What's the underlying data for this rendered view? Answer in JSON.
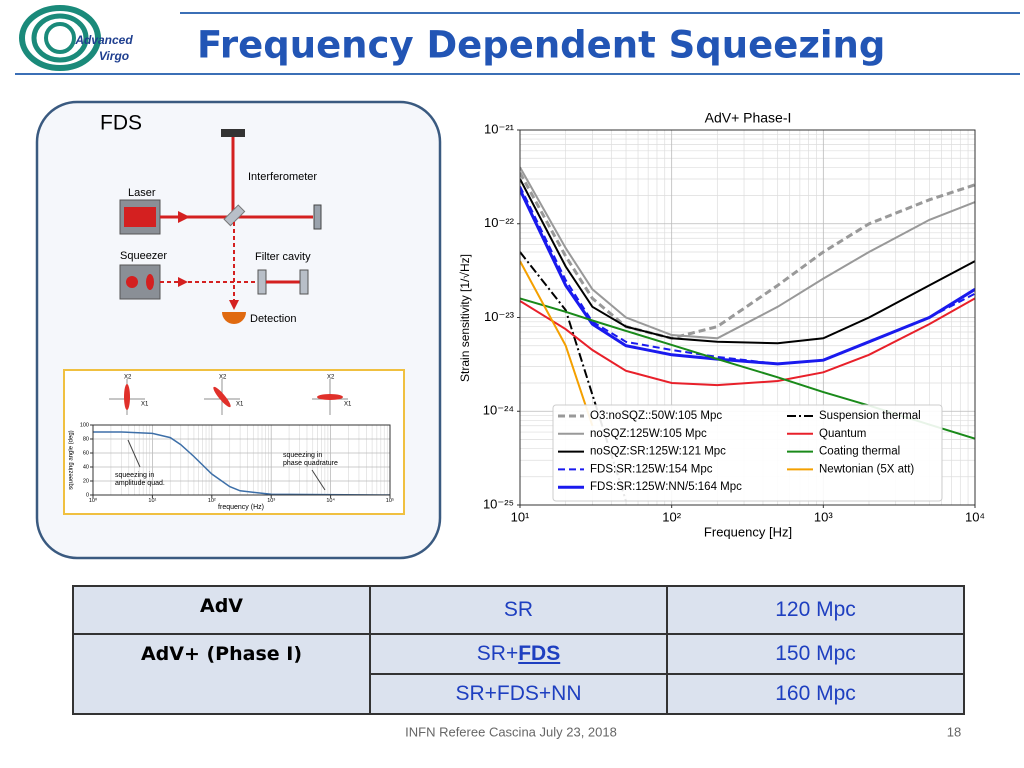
{
  "header": {
    "title": "Frequency Dependent Squeezing",
    "logo": [
      "Advanced",
      "Virgo"
    ]
  },
  "diagram": {
    "label": "FDS",
    "components": [
      "Interferometer",
      "Laser",
      "Squeezer",
      "Filter cavity",
      "Detection"
    ],
    "quadratures": [
      [
        "X2",
        "X1"
      ],
      [
        "X2",
        "X1"
      ],
      [
        "X2",
        "X1"
      ]
    ]
  },
  "inset_chart": {
    "type": "line",
    "xscale": "log",
    "yscale": "linear",
    "xlabel": "frequency (Hz)",
    "ylabel": "squeezing angle (deg)",
    "xlim": [
      1,
      100000
    ],
    "ylim": [
      0,
      100
    ],
    "xticks": [
      {
        "value": 1,
        "label": "10⁰"
      },
      {
        "value": 10,
        "label": "10¹"
      },
      {
        "value": 100,
        "label": "10²"
      },
      {
        "value": 1000,
        "label": "10³"
      },
      {
        "value": 10000,
        "label": "10⁴"
      },
      {
        "value": 100000,
        "label": "10⁵"
      }
    ],
    "yticks": [
      0,
      20,
      40,
      60,
      80,
      100
    ],
    "grid": true,
    "x": [
      1,
      3,
      10,
      20,
      30,
      50,
      100,
      200,
      300,
      1000,
      100000
    ],
    "values": [
      90,
      90,
      88,
      82,
      72,
      55,
      30,
      12,
      6,
      1,
      0
    ],
    "color": "#3d6fa8",
    "annotations": [
      [
        "squeezing in",
        "amplitude quad."
      ],
      [
        "squeezing in",
        "phase quadrature"
      ]
    ]
  },
  "chart": {
    "type": "line",
    "xscale": "log",
    "yscale": "log",
    "title": "AdV+ Phase-I",
    "xlabel": "Frequency [Hz]",
    "ylabel": "Strain sensitivity [1/√Hz]",
    "xlim": [
      10,
      10000
    ],
    "ylim": [
      1e-25,
      1e-21
    ],
    "xticks": [
      {
        "value": 10,
        "label": "10¹"
      },
      {
        "value": 100,
        "label": "10²"
      },
      {
        "value": 1000,
        "label": "10³"
      },
      {
        "value": 10000,
        "label": "10⁴"
      }
    ],
    "yticks": [
      {
        "value": 1e-25,
        "label": "10⁻²⁵"
      },
      {
        "value": 1e-24,
        "label": "10⁻²⁴"
      },
      {
        "value": 1e-23,
        "label": "10⁻²³"
      },
      {
        "value": 1e-22,
        "label": "10⁻²²"
      },
      {
        "value": 1e-21,
        "label": "10⁻²¹"
      }
    ],
    "grid": true,
    "x": [
      10,
      20,
      30,
      50,
      100,
      200,
      500,
      1000,
      2000,
      5000,
      10000
    ],
    "series": [
      {
        "name": "O3:noSQZ::50W:105 Mpc",
        "color": "#999999",
        "dash": "dashed",
        "width": 3,
        "values": [
          3.5e-22,
          4.5e-23,
          1.6e-23,
          8e-24,
          6e-24,
          8e-24,
          2.2e-23,
          5e-23,
          1e-22,
          1.8e-22,
          2.6e-22
        ]
      },
      {
        "name": "noSQZ:125W:105 Mpc",
        "color": "#999999",
        "dash": "solid",
        "width": 2,
        "values": [
          4e-22,
          5.5e-23,
          2e-23,
          1e-23,
          6.5e-24,
          6e-24,
          1.3e-23,
          2.6e-23,
          5e-23,
          1.1e-22,
          1.7e-22
        ]
      },
      {
        "name": "noSQZ:SR:125W:121 Mpc",
        "color": "#000000",
        "dash": "solid",
        "width": 2,
        "values": [
          3e-22,
          3.5e-23,
          1.3e-23,
          8e-24,
          6e-24,
          5.5e-24,
          5.3e-24,
          6e-24,
          1e-23,
          2.2e-23,
          4e-23
        ]
      },
      {
        "name": "FDS:SR:125W:154 Mpc",
        "color": "#1a1aee",
        "dash": "dashed",
        "width": 2,
        "values": [
          2.5e-22,
          2.5e-23,
          9e-24,
          5.5e-24,
          4.5e-24,
          3.8e-24,
          3.2e-24,
          3.5e-24,
          5.5e-24,
          1e-23,
          1.8e-23
        ]
      },
      {
        "name": "FDS:SR:125W:NN/5:164 Mpc",
        "color": "#1a1aee",
        "dash": "solid",
        "width": 3,
        "values": [
          2.3e-22,
          2.2e-23,
          8.5e-24,
          5e-24,
          4e-24,
          3.6e-24,
          3.2e-24,
          3.5e-24,
          5.5e-24,
          1e-23,
          2e-23
        ]
      },
      {
        "name": "Suspension thermal",
        "color": "#000000",
        "dash": "dashdot",
        "width": 2,
        "values": [
          5e-23,
          1.2e-23,
          1.5e-24,
          1.1e-25,
          null,
          null,
          null,
          null,
          null,
          null,
          null
        ]
      },
      {
        "name": "Quantum",
        "color": "#e8202a",
        "dash": "solid",
        "width": 2,
        "values": [
          1.5e-23,
          7.5e-24,
          4.5e-24,
          2.7e-24,
          2e-24,
          1.9e-24,
          2.1e-24,
          2.6e-24,
          4e-24,
          8.5e-24,
          1.6e-23
        ]
      },
      {
        "name": "Coating thermal",
        "color": "#1a8a1a",
        "dash": "solid",
        "width": 2,
        "values": [
          1.6e-23,
          1.15e-23,
          9.3e-24,
          7.2e-24,
          5.1e-24,
          3.6e-24,
          2.3e-24,
          1.6e-24,
          1.15e-24,
          7.2e-25,
          5.1e-25
        ]
      },
      {
        "name": "Newtonian (5X att)",
        "color": "#f4a000",
        "dash": "solid",
        "width": 2,
        "values": [
          4e-23,
          5e-24,
          7e-25,
          null,
          null,
          null,
          null,
          null,
          null,
          null,
          null
        ]
      }
    ]
  },
  "table": {
    "rows": [
      [
        "AdV",
        "SR",
        "120 Mpc"
      ],
      [
        "AdV+ (Phase I)",
        [
          "SR+",
          "FDS"
        ],
        "150 Mpc"
      ],
      [
        "SR+FDS+NN",
        "160 Mpc"
      ]
    ]
  },
  "footer": {
    "text": "INFN Referee  Cascina  July  23,  2018",
    "page": "18"
  }
}
